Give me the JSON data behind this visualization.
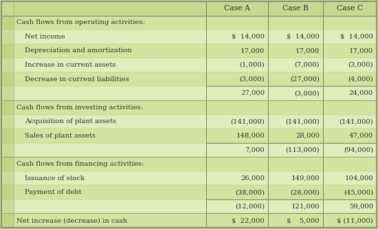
{
  "col_headers": [
    "",
    "Case A",
    "Case B",
    "Case C"
  ],
  "rows": [
    {
      "label": "Cash flows from operating activities:",
      "indent": 0,
      "values": [
        "",
        "",
        ""
      ],
      "is_section": true
    },
    {
      "label": "Net income",
      "indent": 1,
      "values": [
        "$  14,000",
        "$  14,000",
        "$  14,000"
      ],
      "dollar": true
    },
    {
      "label": "Depreciation and amortization",
      "indent": 1,
      "values": [
        "17,000",
        "17,000",
        "17,000"
      ]
    },
    {
      "label": "Increase in current assets",
      "indent": 1,
      "values": [
        "(1,000)",
        "(7,000)",
        "(3,000)"
      ]
    },
    {
      "label": "Decrease in current liabilities",
      "indent": 1,
      "values": [
        "(3,000)",
        "(27,000)",
        "(4,000)"
      ]
    },
    {
      "label": "",
      "indent": 0,
      "values": [
        "27,000",
        "(3,000)",
        "24,000"
      ],
      "subtotal": true
    },
    {
      "label": "Cash flows from investing activities:",
      "indent": 0,
      "values": [
        "",
        "",
        ""
      ],
      "is_section": true
    },
    {
      "label": "Acquisition of plant assets",
      "indent": 1,
      "values": [
        "(141,000)",
        "(141,000)",
        "(141,000)"
      ]
    },
    {
      "label": "Sales of plant assets",
      "indent": 1,
      "values": [
        "148,000",
        "28,000",
        "47,000"
      ]
    },
    {
      "label": "",
      "indent": 0,
      "values": [
        "7,000",
        "(113,000)",
        "(94,000)"
      ],
      "subtotal": true
    },
    {
      "label": "Cash flows from financing activities:",
      "indent": 0,
      "values": [
        "",
        "",
        ""
      ],
      "is_section": true
    },
    {
      "label": "Issuance of stock",
      "indent": 1,
      "values": [
        "26,000",
        "149,000",
        "104,000"
      ]
    },
    {
      "label": "Payment of debt",
      "indent": 1,
      "values": [
        "(38,000)",
        "(28,000)",
        "(45,000)"
      ]
    },
    {
      "label": "",
      "indent": 0,
      "values": [
        "(12,000)",
        "121,000",
        "59,000"
      ],
      "subtotal": true
    },
    {
      "label": "Net increase (decrease) in cash",
      "indent": 0,
      "values": [
        "$  22,000",
        "$    5,000",
        "$ (11,000)"
      ],
      "total": true
    }
  ],
  "row_colors": [
    "#d6e4a0",
    "#e8f0c8",
    "#d6e4a0",
    "#e8f0c8",
    "#d6e4a0",
    "#e8f0c8",
    "#d6e4a0",
    "#e8f0c8",
    "#d6e4a0",
    "#e8f0c8",
    "#d6e4a0",
    "#e8f0c8",
    "#d6e4a0",
    "#e8f0c8",
    "#d6e4a0"
  ],
  "header_bg": "#c8d890",
  "bg_outer": "#c8d890",
  "text_color": "#2c2c2c",
  "border_color": "#909878",
  "font_size": 7.2,
  "header_font_size": 7.8,
  "fig_width": 5.5,
  "fig_height": 3.33,
  "dpi": 100
}
